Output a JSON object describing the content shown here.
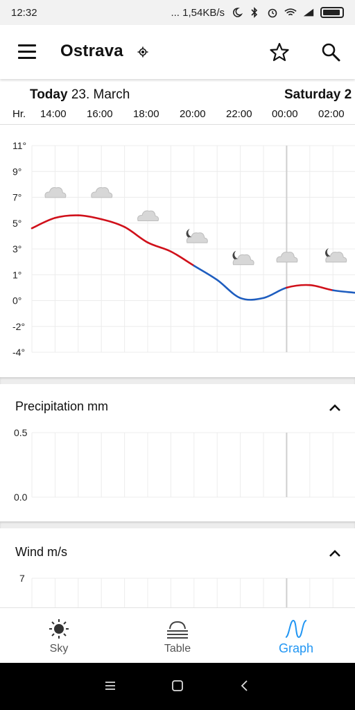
{
  "status": {
    "time": "12:32",
    "network": "... 1,54KB/s"
  },
  "header": {
    "title": "Ostrava"
  },
  "dates": {
    "today_bold": "Today",
    "today_date": "23. March",
    "next_day": "Saturday 2"
  },
  "hours": {
    "label": "Hr.",
    "ticks": [
      "14:00",
      "16:00",
      "18:00",
      "20:00",
      "22:00",
      "00:00",
      "02:00"
    ]
  },
  "temperature": {
    "unit": "°",
    "y_ticks": [
      "11°",
      "9°",
      "7°",
      "5°",
      "3°",
      "1°",
      "0°",
      "-2°",
      "-4°"
    ]
  },
  "precipitation": {
    "title": "Precipitation mm",
    "y_ticks": [
      "0.5",
      "0.0"
    ]
  },
  "wind": {
    "title": "Wind m/s",
    "y_ticks": [
      "7"
    ]
  },
  "bottom_nav": {
    "sky": "Sky",
    "table": "Table",
    "graph": "Graph"
  },
  "colors": {
    "accent": "#2196f3",
    "warm_line": "#d0101a",
    "cold_line": "#1e5dbf"
  },
  "chart_data": {
    "type": "line",
    "x": [
      "13:00",
      "14:00",
      "15:00",
      "16:00",
      "17:00",
      "18:00",
      "19:00",
      "20:00",
      "21:00",
      "22:00",
      "23:00",
      "00:00",
      "01:00",
      "02:00",
      "03:00"
    ],
    "series": [
      {
        "values": [
          4.6,
          5.4,
          5.6,
          5.3,
          4.7,
          3.5,
          2.8,
          1.7,
          0.8,
          0.1,
          0.1,
          0.5,
          0.6,
          0.4,
          0.3
        ]
      }
    ],
    "icons": [
      {
        "x": "14:00",
        "value": 7.3,
        "icon": "cloud"
      },
      {
        "x": "16:00",
        "value": 7.3,
        "icon": "cloud"
      },
      {
        "x": "18:00",
        "value": 5.5,
        "icon": "cloud"
      },
      {
        "x": "20:00",
        "value": 3.8,
        "icon": "cloud-moon"
      },
      {
        "x": "22:00",
        "value": 2.1,
        "icon": "cloud-moon"
      },
      {
        "x": "00:00",
        "value": 2.3,
        "icon": "cloud"
      },
      {
        "x": "02:00",
        "value": 2.3,
        "icon": "cloud-moon"
      }
    ],
    "ylim": [
      -4,
      11
    ],
    "grid": true
  }
}
